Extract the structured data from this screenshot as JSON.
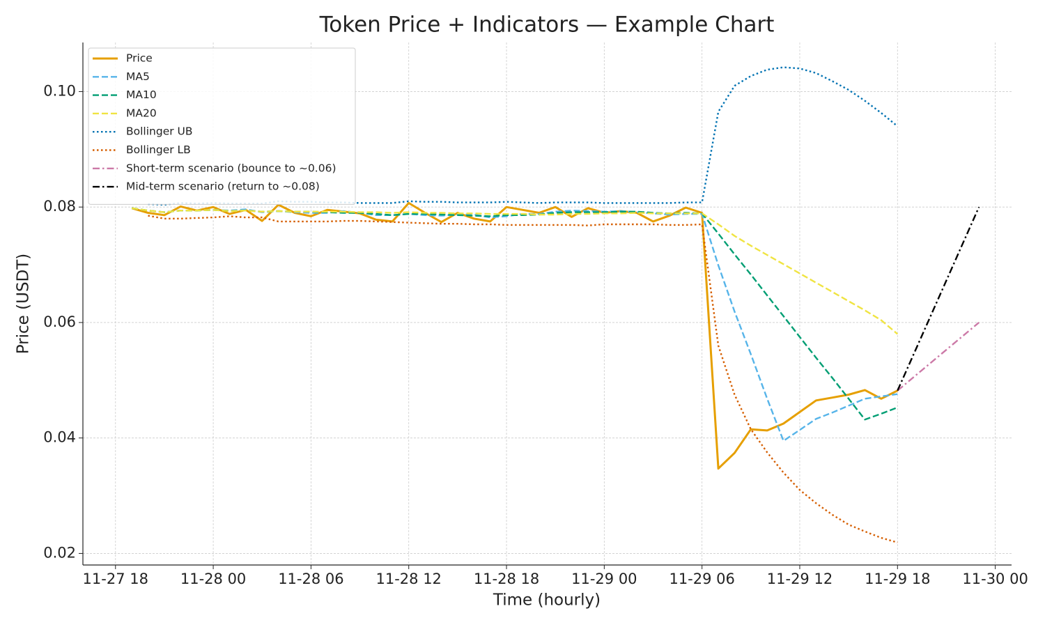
{
  "chart_data": {
    "type": "line",
    "title": "Token Price + Indicators — Example Chart",
    "x_label": "Time (hourly)",
    "y_label": "Price (USDT)",
    "x": [
      "11-27 19",
      "11-27 20",
      "11-27 21",
      "11-27 22",
      "11-27 23",
      "11-28 00",
      "11-28 01",
      "11-28 02",
      "11-28 03",
      "11-28 04",
      "11-28 05",
      "11-28 06",
      "11-28 07",
      "11-28 08",
      "11-28 09",
      "11-28 10",
      "11-28 11",
      "11-28 12",
      "11-28 13",
      "11-28 14",
      "11-28 15",
      "11-28 16",
      "11-28 17",
      "11-28 18",
      "11-28 19",
      "11-28 20",
      "11-28 21",
      "11-28 22",
      "11-28 23",
      "11-29 00",
      "11-29 01",
      "11-29 02",
      "11-29 03",
      "11-29 04",
      "11-29 05",
      "11-29 06",
      "11-29 07",
      "11-29 08",
      "11-29 09",
      "11-29 10",
      "11-29 11",
      "11-29 12",
      "11-29 13",
      "11-29 14",
      "11-29 15",
      "11-29 16",
      "11-29 17",
      "11-29 18"
    ],
    "xlim": [
      "11-27 16",
      "11-30 01"
    ],
    "xticks": [
      "11-27 18",
      "11-28 00",
      "11-28 06",
      "11-28 12",
      "11-28 18",
      "11-29 00",
      "11-29 06",
      "11-29 12",
      "11-29 18",
      "11-30 00"
    ],
    "ylim": [
      0.018,
      0.1085
    ],
    "yticks": [
      {
        "value": 0.02,
        "label": "0.02"
      },
      {
        "value": 0.04,
        "label": "0.04"
      },
      {
        "value": 0.06,
        "label": "0.06"
      },
      {
        "value": 0.08,
        "label": "0.08"
      },
      {
        "value": 0.1,
        "label": "0.10"
      }
    ],
    "grid": true,
    "legend": "upper left",
    "series": [
      {
        "name": "Price",
        "color": "#e69f00",
        "style": "solid",
        "values": [
          0.0798,
          0.079,
          0.0786,
          0.0801,
          0.0794,
          0.08,
          0.0788,
          0.0795,
          0.0776,
          0.0804,
          0.079,
          0.0784,
          0.0795,
          0.0792,
          0.0789,
          0.0778,
          0.0775,
          0.0807,
          0.079,
          0.0774,
          0.079,
          0.078,
          0.0775,
          0.08,
          0.0795,
          0.079,
          0.08,
          0.0783,
          0.0798,
          0.079,
          0.0793,
          0.079,
          0.0775,
          0.0785,
          0.0799,
          0.079,
          0.0347,
          0.0374,
          0.0415,
          0.0413,
          0.0425,
          0.0445,
          0.0465,
          0.047,
          0.0475,
          0.0483,
          0.0468,
          0.0482
        ]
      },
      {
        "name": "MA5",
        "color": "#56b4e9",
        "style": "dashed",
        "values": [
          0.0798,
          0.0794,
          0.0791,
          0.0794,
          0.0794,
          0.0795,
          0.0794,
          0.0796,
          0.0791,
          0.0793,
          0.0791,
          0.079,
          0.079,
          0.0793,
          0.079,
          0.0786,
          0.0786,
          0.0788,
          0.0786,
          0.0785,
          0.0787,
          0.0787,
          0.0782,
          0.0784,
          0.0788,
          0.0788,
          0.0792,
          0.0794,
          0.0793,
          0.0792,
          0.0793,
          0.0791,
          0.0789,
          0.0787,
          0.0788,
          0.0788,
          0.0699,
          0.0619,
          0.0545,
          0.0468,
          0.0395,
          0.0414,
          0.0433,
          0.0444,
          0.0456,
          0.0468,
          0.0472,
          0.0476
        ]
      },
      {
        "name": "MA10",
        "color": "#009e73",
        "style": "dashed",
        "values": [
          0.0798,
          0.0794,
          0.0791,
          0.0794,
          0.0794,
          0.0795,
          0.0793,
          0.0794,
          0.0792,
          0.0793,
          0.0792,
          0.0792,
          0.0791,
          0.079,
          0.079,
          0.0788,
          0.0786,
          0.0788,
          0.0788,
          0.0787,
          0.0786,
          0.0785,
          0.0784,
          0.0786,
          0.0786,
          0.0787,
          0.079,
          0.0791,
          0.0791,
          0.0791,
          0.0792,
          0.0792,
          0.079,
          0.0789,
          0.079,
          0.0789,
          0.0754,
          0.0718,
          0.0683,
          0.0647,
          0.0611,
          0.0575,
          0.0539,
          0.0504,
          0.0468,
          0.0432,
          0.0442,
          0.0453
        ]
      },
      {
        "name": "MA20",
        "color": "#f0e442",
        "style": "dashed",
        "values": [
          0.0798,
          0.0794,
          0.0791,
          0.0794,
          0.0794,
          0.0795,
          0.0793,
          0.0794,
          0.0792,
          0.0793,
          0.0792,
          0.0792,
          0.0792,
          0.0792,
          0.0791,
          0.0791,
          0.079,
          0.0791,
          0.079,
          0.079,
          0.0789,
          0.0789,
          0.0788,
          0.0788,
          0.0788,
          0.0787,
          0.0787,
          0.0788,
          0.0788,
          0.0789,
          0.0789,
          0.079,
          0.0789,
          0.0789,
          0.0789,
          0.0789,
          0.077,
          0.075,
          0.0733,
          0.0717,
          0.0701,
          0.0685,
          0.0669,
          0.0653,
          0.0637,
          0.0621,
          0.0604,
          0.058
        ]
      },
      {
        "name": "Bollinger UB",
        "color": "#0072b2",
        "style": "dotted",
        "values": [
          null,
          0.0805,
          0.0804,
          0.0807,
          0.0806,
          0.0807,
          0.0806,
          0.0806,
          0.0806,
          0.081,
          0.0809,
          0.0809,
          0.0808,
          0.0808,
          0.0807,
          0.0807,
          0.0807,
          0.081,
          0.0809,
          0.0809,
          0.0808,
          0.0808,
          0.0808,
          0.0809,
          0.0808,
          0.0807,
          0.0808,
          0.0808,
          0.0808,
          0.0807,
          0.0807,
          0.0807,
          0.0807,
          0.0807,
          0.0808,
          0.0808,
          0.0965,
          0.101,
          0.1027,
          0.1038,
          0.1042,
          0.104,
          0.1032,
          0.1018,
          0.1003,
          0.0984,
          0.0963,
          0.094
        ]
      },
      {
        "name": "Bollinger LB",
        "color": "#d55e00",
        "style": "dotted",
        "values": [
          null,
          0.0785,
          0.078,
          0.078,
          0.0781,
          0.0782,
          0.0784,
          0.0782,
          0.0782,
          0.0775,
          0.0775,
          0.0775,
          0.0775,
          0.0776,
          0.0776,
          0.0775,
          0.0774,
          0.0773,
          0.0772,
          0.0771,
          0.0771,
          0.077,
          0.077,
          0.0769,
          0.0769,
          0.0769,
          0.0769,
          0.0769,
          0.0768,
          0.077,
          0.077,
          0.077,
          0.077,
          0.0769,
          0.0769,
          0.077,
          0.056,
          0.0475,
          0.0415,
          0.0375,
          0.034,
          0.031,
          0.0287,
          0.0267,
          0.025,
          0.0238,
          0.0227,
          0.0219
        ]
      },
      {
        "name": "Short-term scenario (bounce to ~0.06)",
        "color": "#cc79a7",
        "style": "dashdot",
        "x": [
          "11-29 18",
          "11-29 23"
        ],
        "values": [
          0.0482,
          0.06
        ]
      },
      {
        "name": "Mid-term scenario (return to ~0.08)",
        "color": "#000000",
        "style": "dashdot",
        "x": [
          "11-29 18",
          "11-29 23"
        ],
        "values": [
          0.0482,
          0.08
        ]
      }
    ]
  }
}
